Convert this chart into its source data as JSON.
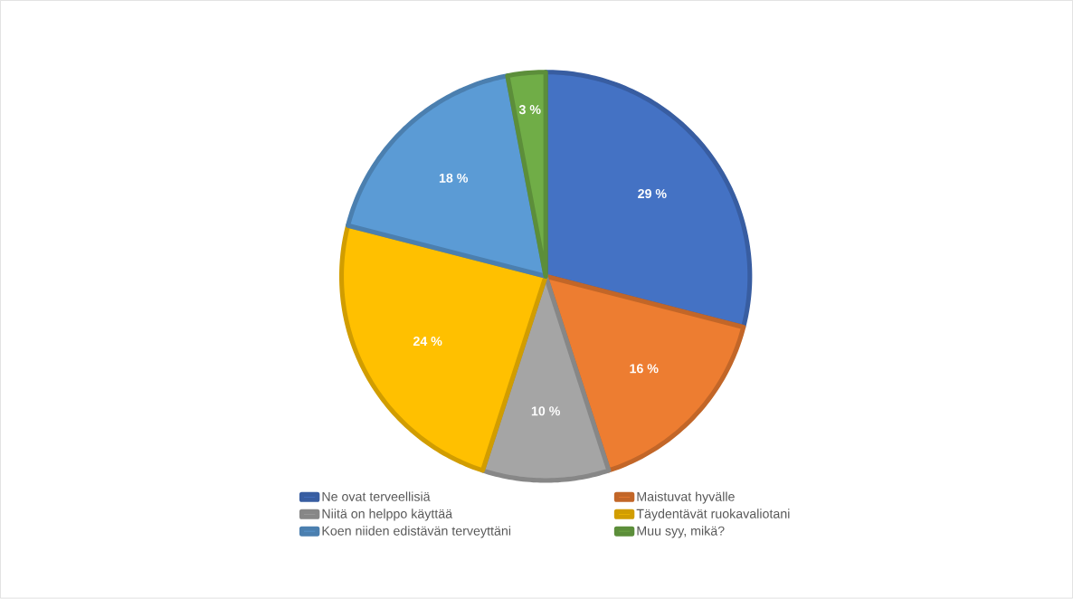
{
  "chart_data": {
    "type": "pie",
    "categories": [
      "Ne ovat terveellisiä",
      "Maistuvat hyvälle",
      "Niitä on helppo käyttää",
      "Täydentävät ruokavaliotani",
      "Koen niiden edistävän terveyttäni",
      "Muu syy, mikä?"
    ],
    "values": [
      29,
      16,
      10,
      24,
      18,
      3
    ],
    "colors": [
      "#4472c4",
      "#ed7d31",
      "#a5a5a5",
      "#ffc000",
      "#5b9bd5",
      "#70ad47"
    ],
    "value_labels": [
      "29 %",
      "16 %",
      "10 %",
      "24 %",
      "18 %",
      "3 %"
    ],
    "legend": "bottom"
  }
}
